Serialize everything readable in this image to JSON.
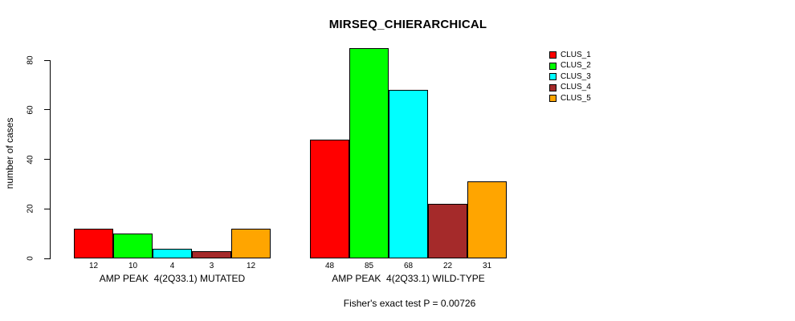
{
  "chart_data": {
    "type": "bar",
    "title": "MIRSEQ_CHIERARCHICAL",
    "ylabel": "number of cases",
    "xlabel": "",
    "annotation": "Fisher's exact test P = 0.00726",
    "ylim": [
      0,
      85
    ],
    "yticks": [
      0,
      20,
      40,
      60,
      80
    ],
    "grid": false,
    "legend_position": "top-right",
    "value_labels_shown": true,
    "bar_border_color": "#000000",
    "categories": [
      "AMP PEAK  4(2Q33.1) MUTATED",
      "AMP PEAK  4(2Q33.1) WILD-TYPE"
    ],
    "series": [
      {
        "name": "CLUS_1",
        "color": "#ff0000",
        "values": [
          12,
          48
        ]
      },
      {
        "name": "CLUS_2",
        "color": "#00ff00",
        "values": [
          10,
          85
        ]
      },
      {
        "name": "CLUS_3",
        "color": "#00ffff",
        "values": [
          4,
          68
        ]
      },
      {
        "name": "CLUS_4",
        "color": "#a52a2a",
        "values": [
          3,
          22
        ]
      },
      {
        "name": "CLUS_5",
        "color": "#ffa500",
        "values": [
          12,
          31
        ]
      }
    ]
  }
}
